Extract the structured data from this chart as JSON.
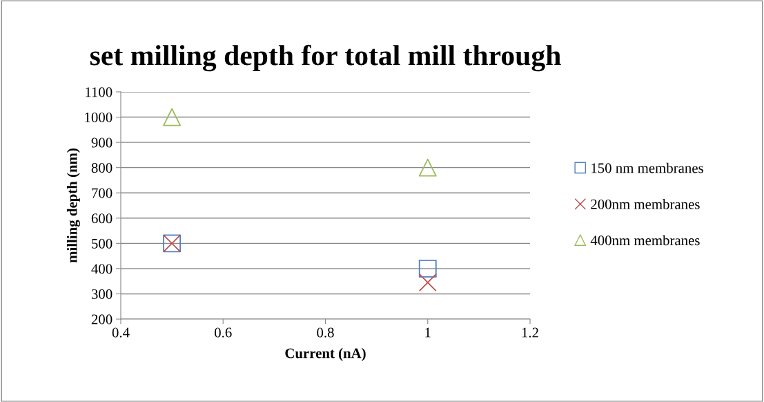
{
  "chart_data": {
    "type": "scatter",
    "title": "set milling depth for total mill through",
    "xlabel": "Current (nA)",
    "ylabel": "milling depth (nm)",
    "x": [
      0.5,
      1
    ],
    "xlim": [
      0.4,
      1.2
    ],
    "xticks": [
      0.4,
      0.6,
      0.8,
      {
        "value": 1,
        "label": "1"
      },
      1.2
    ],
    "ylim": [
      200,
      1100
    ],
    "yticks": [
      200,
      300,
      400,
      500,
      600,
      700,
      800,
      900,
      1000,
      1100
    ],
    "grid": "y",
    "legend": "right",
    "series": [
      {
        "name": "150 nm membranes",
        "color": "#4f81bd",
        "marker": "square",
        "values": [
          500,
          400
        ]
      },
      {
        "name": "200nm membranes",
        "color": "#c0504d",
        "marker": "cross",
        "values": [
          500,
          345
        ]
      },
      {
        "name": "400nm membranes",
        "color": "#9bbb59",
        "marker": "triangle",
        "values": [
          1000,
          800
        ]
      }
    ]
  }
}
